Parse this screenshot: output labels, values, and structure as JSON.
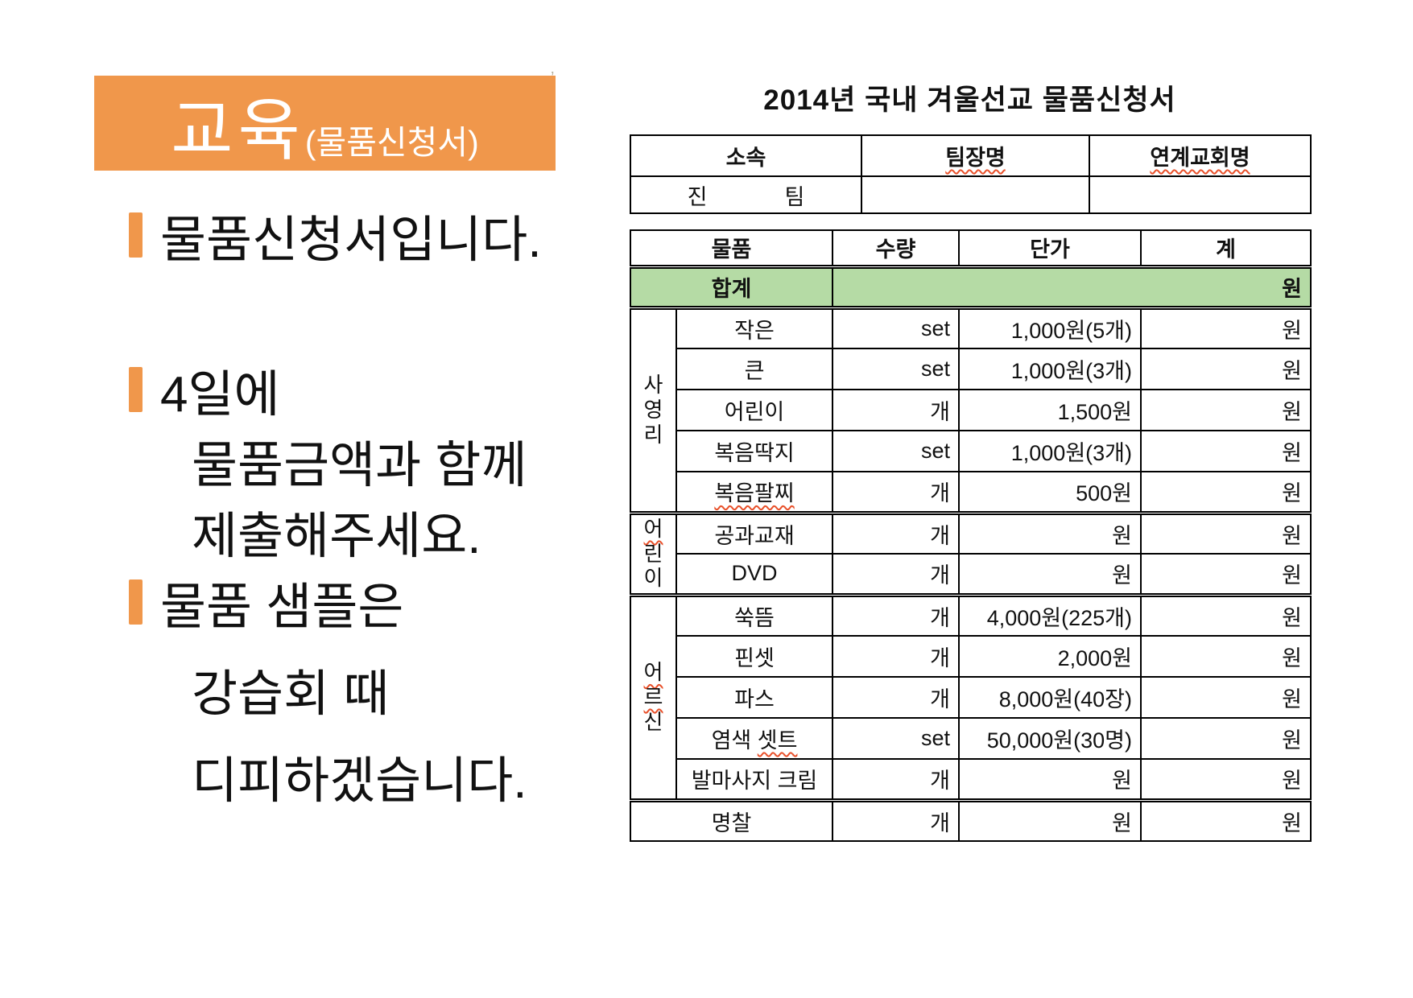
{
  "header_box": {
    "title": "교육",
    "subtitle": "(물품신청서)"
  },
  "stray_mark": "’",
  "bullets": [
    {
      "bullet": true,
      "gap": "none",
      "text": "물품신청서입니다."
    },
    {
      "bullet": true,
      "gap": "large",
      "text": "4일에"
    },
    {
      "bullet": false,
      "gap": "none",
      "text": "물품금액과 함께"
    },
    {
      "bullet": false,
      "gap": "none",
      "text": "제출해주세요."
    },
    {
      "bullet": true,
      "gap": "none",
      "text": "물품 샘플은"
    },
    {
      "bullet": false,
      "gap": "small",
      "text": "강습회 때"
    },
    {
      "bullet": false,
      "gap": "small",
      "text": "디피하겠습니다."
    }
  ],
  "form": {
    "title": "2014년  국내  겨울선교  물품신청서",
    "info_table": {
      "headers": [
        {
          "label": "소속",
          "misspelled": false
        },
        {
          "label": "팀장명",
          "misspelled": true
        },
        {
          "label": "연계교회명",
          "misspelled": true
        }
      ],
      "row": {
        "affiliation_left": "진",
        "affiliation_right": "팀",
        "leader_name": "",
        "church_name": ""
      }
    },
    "items_table": {
      "headers": [
        "물품",
        "수량",
        "단가",
        "계"
      ],
      "total_row": {
        "label": "합계",
        "value": "원"
      },
      "groups": [
        {
          "label": "사영리",
          "misspelled_char_indexes": [],
          "rows": [
            {
              "name": "작은",
              "qty": "set",
              "price": "1,000원(5개)",
              "total": "원"
            },
            {
              "name": "큰",
              "qty": "set",
              "price": "1,000원(3개)",
              "total": "원"
            },
            {
              "name": "어린이",
              "qty": "개",
              "price": "1,500원",
              "total": "원"
            },
            {
              "name": "복음딱지",
              "qty": "set",
              "price": "1,000원(3개)",
              "total": "원"
            },
            {
              "name": "복음팔찌",
              "qty": "개",
              "price": "500원",
              "total": "원",
              "name_misspelled": true
            }
          ]
        },
        {
          "label": "어린이",
          "misspelled_char_indexes": [
            0
          ],
          "rows": [
            {
              "name": "공과교재",
              "qty": "개",
              "price": "원",
              "total": "원"
            },
            {
              "name": "DVD",
              "qty": "개",
              "price": "원",
              "total": "원"
            }
          ]
        },
        {
          "label": "어르신",
          "misspelled_char_indexes": [
            0,
            1
          ],
          "rows": [
            {
              "name": "쑥뜸",
              "qty": "개",
              "price": "4,000원(225개)",
              "total": "원"
            },
            {
              "name": "핀셋",
              "qty": "개",
              "price": "2,000원",
              "total": "원"
            },
            {
              "name": "파스",
              "qty": "개",
              "price": "8,000원(40장)",
              "total": "원"
            },
            {
              "name": "염색 셋트",
              "qty": "set",
              "price": "50,000원(30명)",
              "total": "원",
              "name_misspelled_part": "셋트"
            },
            {
              "name": "발마사지 크림",
              "qty": "개",
              "price": "원",
              "total": "원"
            }
          ]
        }
      ],
      "footer_row": {
        "name": "명찰",
        "qty": "개",
        "price": "원",
        "total": "원"
      }
    }
  },
  "colors": {
    "accent_orange": "#F0974B",
    "total_green": "#B5DBA5",
    "squiggle_red": "#E8502A"
  }
}
